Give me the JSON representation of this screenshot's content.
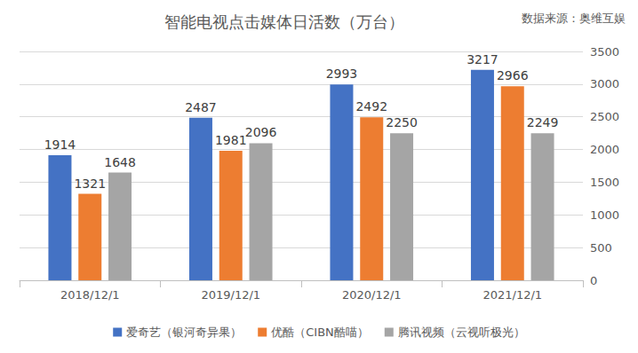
{
  "chart_data": {
    "type": "bar",
    "title": "智能电视点击媒体日活数（万台）",
    "annotations": [
      "数据来源：奥维互娱"
    ],
    "categories": [
      "2018/12/1",
      "2019/12/1",
      "2020/12/1",
      "2021/12/1"
    ],
    "series": [
      {
        "name": "爱奇艺（银河奇异果）",
        "color": "#4472c4",
        "values": [
          1914,
          2487,
          2993,
          3217
        ]
      },
      {
        "name": "优酷（CIBN酷喵）",
        "color": "#ed7d31",
        "values": [
          1321,
          1981,
          2492,
          2966
        ]
      },
      {
        "name": "腾讯视频（云视听极光）",
        "color": "#a5a5a5",
        "values": [
          1648,
          2096,
          2250,
          2249
        ]
      }
    ],
    "ylim": [
      0,
      3500
    ],
    "yticks": [
      0,
      500,
      1000,
      1500,
      2000,
      2500,
      3000,
      3500
    ],
    "grid": true,
    "legend": "bottom",
    "data_labels": true
  }
}
